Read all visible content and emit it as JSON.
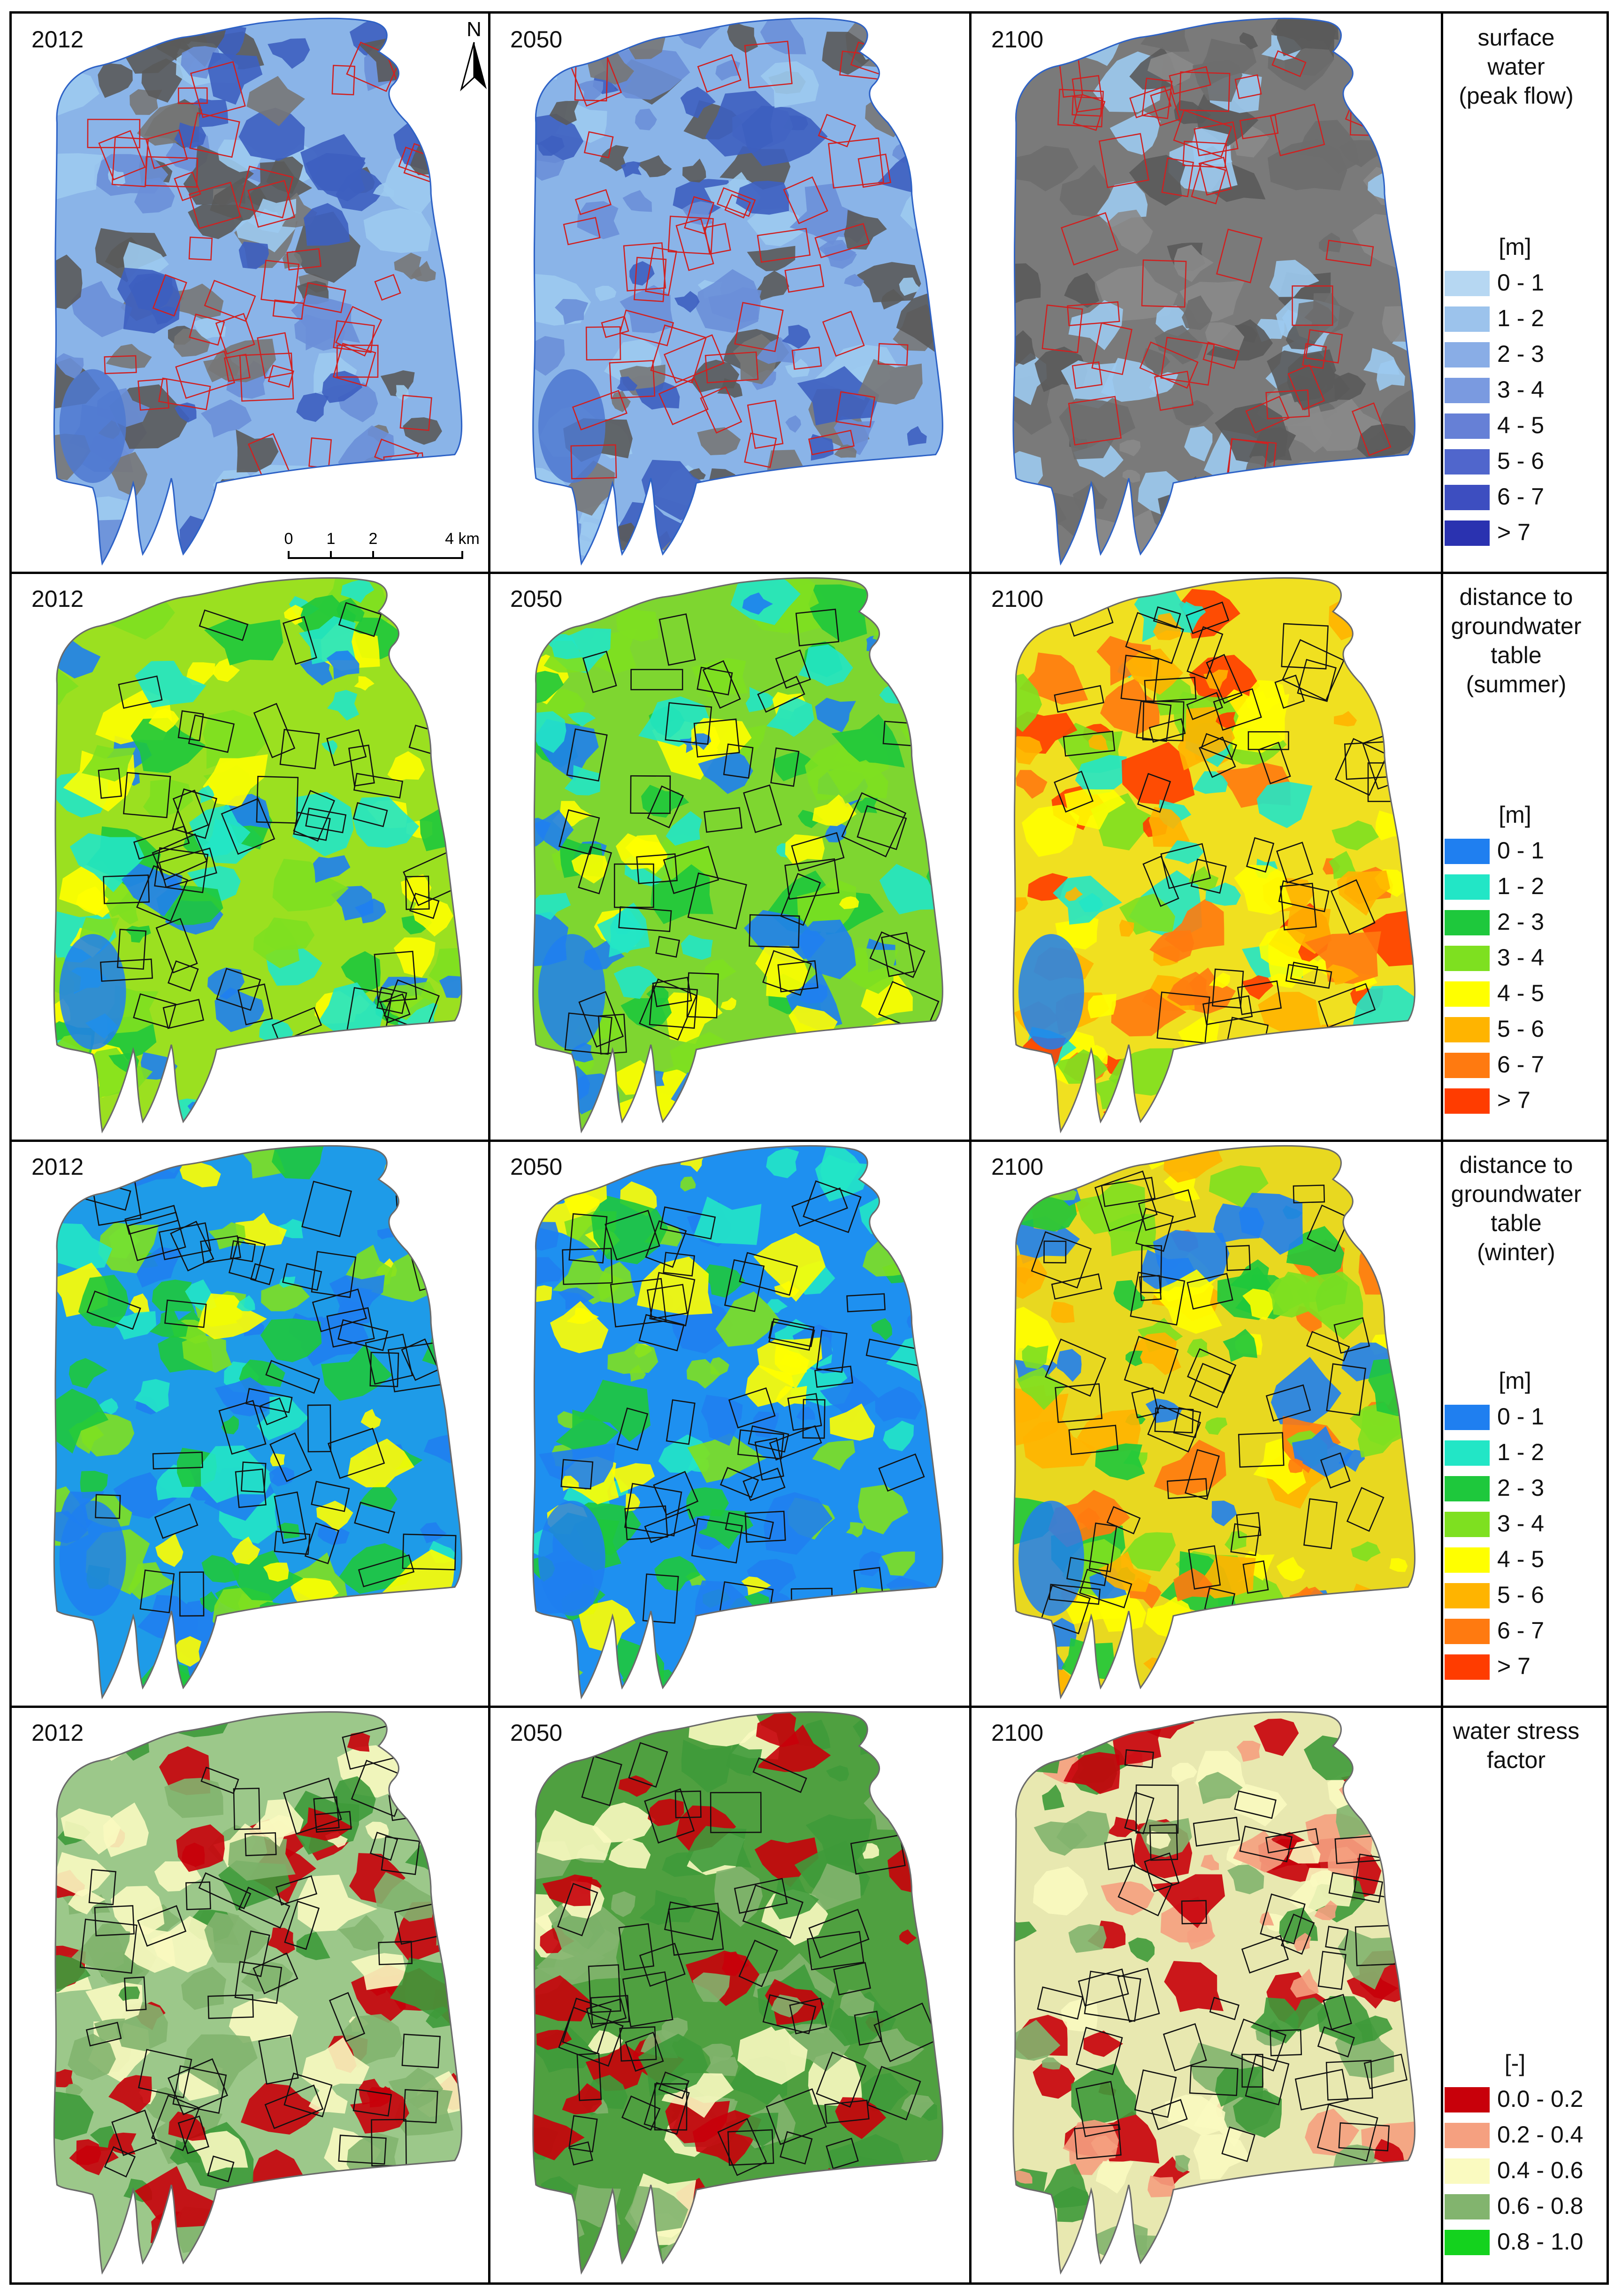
{
  "rows": [
    {
      "id": "surface-water",
      "years": [
        "2012",
        "2050",
        "2100"
      ],
      "legend": {
        "title_lines": [
          "surface",
          "water",
          "(peak flow)"
        ],
        "unit": "[m]",
        "items": [
          {
            "label": "0 - 1",
            "color": "#b6d7f2"
          },
          {
            "label": "1 - 2",
            "color": "#9cc3ec"
          },
          {
            "label": "2 - 3",
            "color": "#89ade6"
          },
          {
            "label": "3 - 4",
            "color": "#7a9ae0"
          },
          {
            "label": "4 - 5",
            "color": "#6680d6"
          },
          {
            "label": "5 - 6",
            "color": "#5066cc"
          },
          {
            "label": "6 - 7",
            "color": "#3d4ec0"
          },
          {
            "label": "> 7",
            "color": "#2a32b0"
          }
        ]
      }
    },
    {
      "id": "groundwater-summer",
      "years": [
        "2012",
        "2050",
        "2100"
      ],
      "legend": {
        "title_lines": [
          "distance to",
          "groundwater",
          "table",
          "(summer)"
        ],
        "unit": "[m]",
        "items": [
          {
            "label": "0 - 1",
            "color": "#1f7ff0"
          },
          {
            "label": "1 - 2",
            "color": "#22e6c6"
          },
          {
            "label": "2 - 3",
            "color": "#1ec83c"
          },
          {
            "label": "3 - 4",
            "color": "#7ee020"
          },
          {
            "label": "4 - 5",
            "color": "#ffff00"
          },
          {
            "label": "5 - 6",
            "color": "#ffb400"
          },
          {
            "label": "6 - 7",
            "color": "#ff7a10"
          },
          {
            "label": "> 7",
            "color": "#ff3c00"
          }
        ]
      }
    },
    {
      "id": "groundwater-winter",
      "years": [
        "2012",
        "2050",
        "2100"
      ],
      "legend": {
        "title_lines": [
          "distance to",
          "groundwater",
          "table",
          "(winter)"
        ],
        "unit": "[m]",
        "items": [
          {
            "label": "0 - 1",
            "color": "#1f7ff0"
          },
          {
            "label": "1 - 2",
            "color": "#22e6c6"
          },
          {
            "label": "2 - 3",
            "color": "#1ec83c"
          },
          {
            "label": "3 - 4",
            "color": "#7ee020"
          },
          {
            "label": "4 - 5",
            "color": "#ffff00"
          },
          {
            "label": "5 - 6",
            "color": "#ffb400"
          },
          {
            "label": "6 - 7",
            "color": "#ff7a10"
          },
          {
            "label": "> 7",
            "color": "#ff3c00"
          }
        ]
      }
    },
    {
      "id": "water-stress",
      "years": [
        "2012",
        "2050",
        "2100"
      ],
      "legend": {
        "title_lines": [
          "water stress",
          "factor"
        ],
        "unit": "[-]",
        "items": [
          {
            "label": "0.0 - 0.2",
            "color": "#c8000a"
          },
          {
            "label": "0.2 - 0.4",
            "color": "#f5a080"
          },
          {
            "label": "0.4 - 0.6",
            "color": "#fafac0"
          },
          {
            "label": "0.6 - 0.8",
            "color": "#82b46e"
          },
          {
            "label": "0.8 - 1.0",
            "color": "#14d21e"
          }
        ]
      }
    }
  ],
  "north_arrow_label": "N",
  "scale_bar": {
    "ticks": [
      "0",
      "1",
      "2",
      "4 km"
    ]
  }
}
